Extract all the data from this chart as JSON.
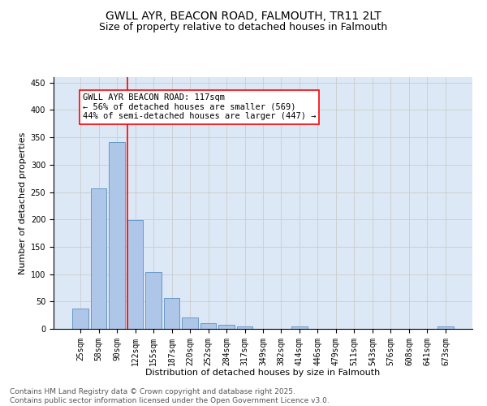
{
  "title": "GWLL AYR, BEACON ROAD, FALMOUTH, TR11 2LT",
  "subtitle": "Size of property relative to detached houses in Falmouth",
  "xlabel": "Distribution of detached houses by size in Falmouth",
  "ylabel": "Number of detached properties",
  "categories": [
    "25sqm",
    "58sqm",
    "90sqm",
    "122sqm",
    "155sqm",
    "187sqm",
    "220sqm",
    "252sqm",
    "284sqm",
    "317sqm",
    "349sqm",
    "382sqm",
    "414sqm",
    "446sqm",
    "479sqm",
    "511sqm",
    "543sqm",
    "576sqm",
    "608sqm",
    "641sqm",
    "673sqm"
  ],
  "values": [
    37,
    256,
    342,
    199,
    104,
    56,
    21,
    11,
    8,
    5,
    0,
    0,
    4,
    0,
    0,
    0,
    0,
    0,
    0,
    0,
    4
  ],
  "bar_color": "#aec6e8",
  "bar_edge_color": "#5a8fc2",
  "vline_index": 3,
  "vline_color": "red",
  "annotation_text": "GWLL AYR BEACON ROAD: 117sqm\n← 56% of detached houses are smaller (569)\n44% of semi-detached houses are larger (447) →",
  "annotation_box_color": "white",
  "annotation_box_edge_color": "red",
  "grid_color": "#cccccc",
  "bg_color": "#dce8f5",
  "footer_text": "Contains HM Land Registry data © Crown copyright and database right 2025.\nContains public sector information licensed under the Open Government Licence v3.0.",
  "ylim": [
    0,
    460
  ],
  "yticks": [
    0,
    50,
    100,
    150,
    200,
    250,
    300,
    350,
    400,
    450
  ],
  "title_fontsize": 10,
  "subtitle_fontsize": 9,
  "axis_label_fontsize": 8,
  "tick_fontsize": 7,
  "annotation_fontsize": 7.5,
  "footer_fontsize": 6.5
}
